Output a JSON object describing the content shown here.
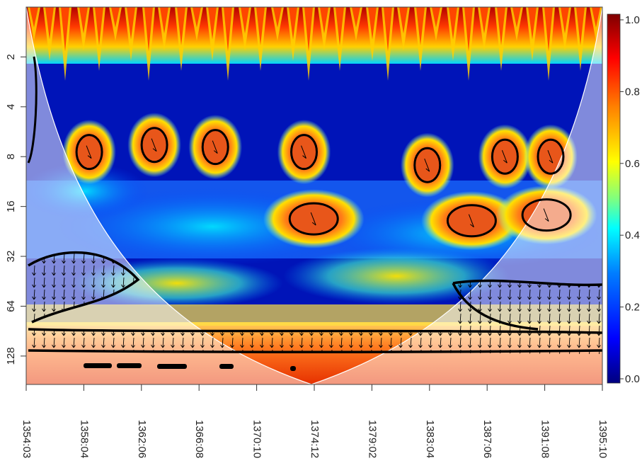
{
  "chart_data": {
    "type": "heatmap",
    "title": "",
    "xlabel": "",
    "ylabel": "",
    "x_tick_labels": [
      "1354:03",
      "1358:04",
      "1362:06",
      "1366:08",
      "1370:10",
      "1374:12",
      "1379:02",
      "1383:04",
      "1387:06",
      "1391:08",
      "1395:10"
    ],
    "y_tick_values": [
      2,
      4,
      8,
      16,
      32,
      64,
      128
    ],
    "y_tick_labels": [
      "2",
      "4",
      "8",
      "16",
      "32",
      "64",
      "128"
    ],
    "y_scale": "log2",
    "y_reversed": true,
    "colorbar": {
      "range": [
        0,
        1
      ],
      "tick_values": [
        0.0,
        0.2,
        0.4,
        0.6,
        0.8,
        1.0
      ],
      "tick_labels": [
        "0.0",
        "0.2",
        "0.4",
        "0.6",
        "0.8",
        "1.0"
      ],
      "colors": [
        "#00007f",
        "#0000ff",
        "#007fff",
        "#00ffff",
        "#7fff7f",
        "#ffff00",
        "#ff7f00",
        "#ff0000",
        "#7f0000"
      ]
    },
    "significant_regions": [
      {
        "x": 1358.8,
        "period": 7.5
      },
      {
        "x": 1363.5,
        "period": 6.8
      },
      {
        "x": 1367.9,
        "period": 7.0
      },
      {
        "x": 1374.3,
        "period": 7.5
      },
      {
        "x": 1383.2,
        "period": 9.0
      },
      {
        "x": 1388.8,
        "period": 8.0
      },
      {
        "x": 1392.1,
        "period": 8.0
      },
      {
        "x": 1375.0,
        "period": 19.0
      },
      {
        "x": 1386.4,
        "period": 19.5
      },
      {
        "x": 1391.8,
        "period": 18.0
      }
    ],
    "cone_of_influence": true,
    "phase_arrows": true
  }
}
